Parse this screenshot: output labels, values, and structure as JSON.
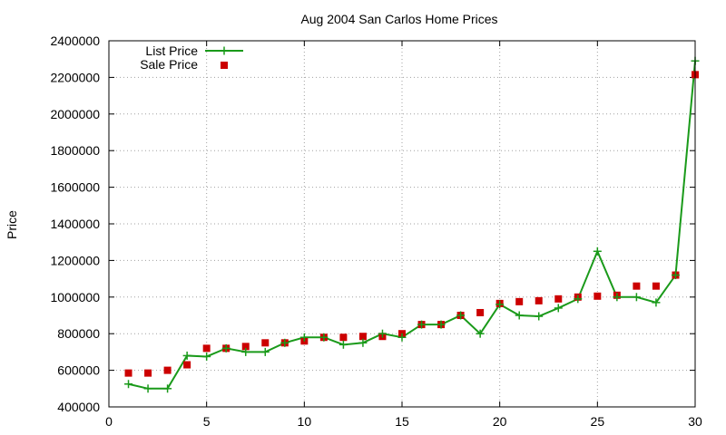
{
  "chart_data": {
    "type": "line",
    "title": "Aug 2004 San Carlos Home Prices",
    "xlabel": "",
    "ylabel": "Price",
    "xlim": [
      0,
      30
    ],
    "ylim": [
      400000,
      2400000
    ],
    "x_ticks": [
      0,
      5,
      10,
      15,
      20,
      25,
      30
    ],
    "y_ticks": [
      400000,
      600000,
      800000,
      1000000,
      1200000,
      1400000,
      1600000,
      1800000,
      2000000,
      2200000,
      2400000
    ],
    "grid": true,
    "legend_position": "top-left",
    "x": [
      1,
      2,
      3,
      4,
      5,
      6,
      7,
      8,
      9,
      10,
      11,
      12,
      13,
      14,
      15,
      16,
      17,
      18,
      19,
      20,
      21,
      22,
      23,
      24,
      25,
      26,
      27,
      28,
      29,
      30
    ],
    "series": [
      {
        "name": "List Price",
        "style": "line-with-plus-markers",
        "color": "#1a9a1a",
        "values": [
          525000,
          500000,
          500000,
          680000,
          675000,
          720000,
          700000,
          700000,
          750000,
          780000,
          780000,
          740000,
          750000,
          800000,
          780000,
          850000,
          850000,
          900000,
          800000,
          960000,
          900000,
          895000,
          940000,
          990000,
          1250000,
          1000000,
          1000000,
          970000,
          1120000,
          2290000
        ]
      },
      {
        "name": "Sale Price",
        "style": "square-markers",
        "color": "#cc0000",
        "values": [
          585000,
          585000,
          600000,
          630000,
          720000,
          720000,
          730000,
          750000,
          750000,
          760000,
          780000,
          780000,
          785000,
          785000,
          800000,
          850000,
          850000,
          900000,
          915000,
          965000,
          975000,
          980000,
          990000,
          1000000,
          1005000,
          1010000,
          1060000,
          1060000,
          1120000,
          2215000
        ]
      }
    ]
  }
}
